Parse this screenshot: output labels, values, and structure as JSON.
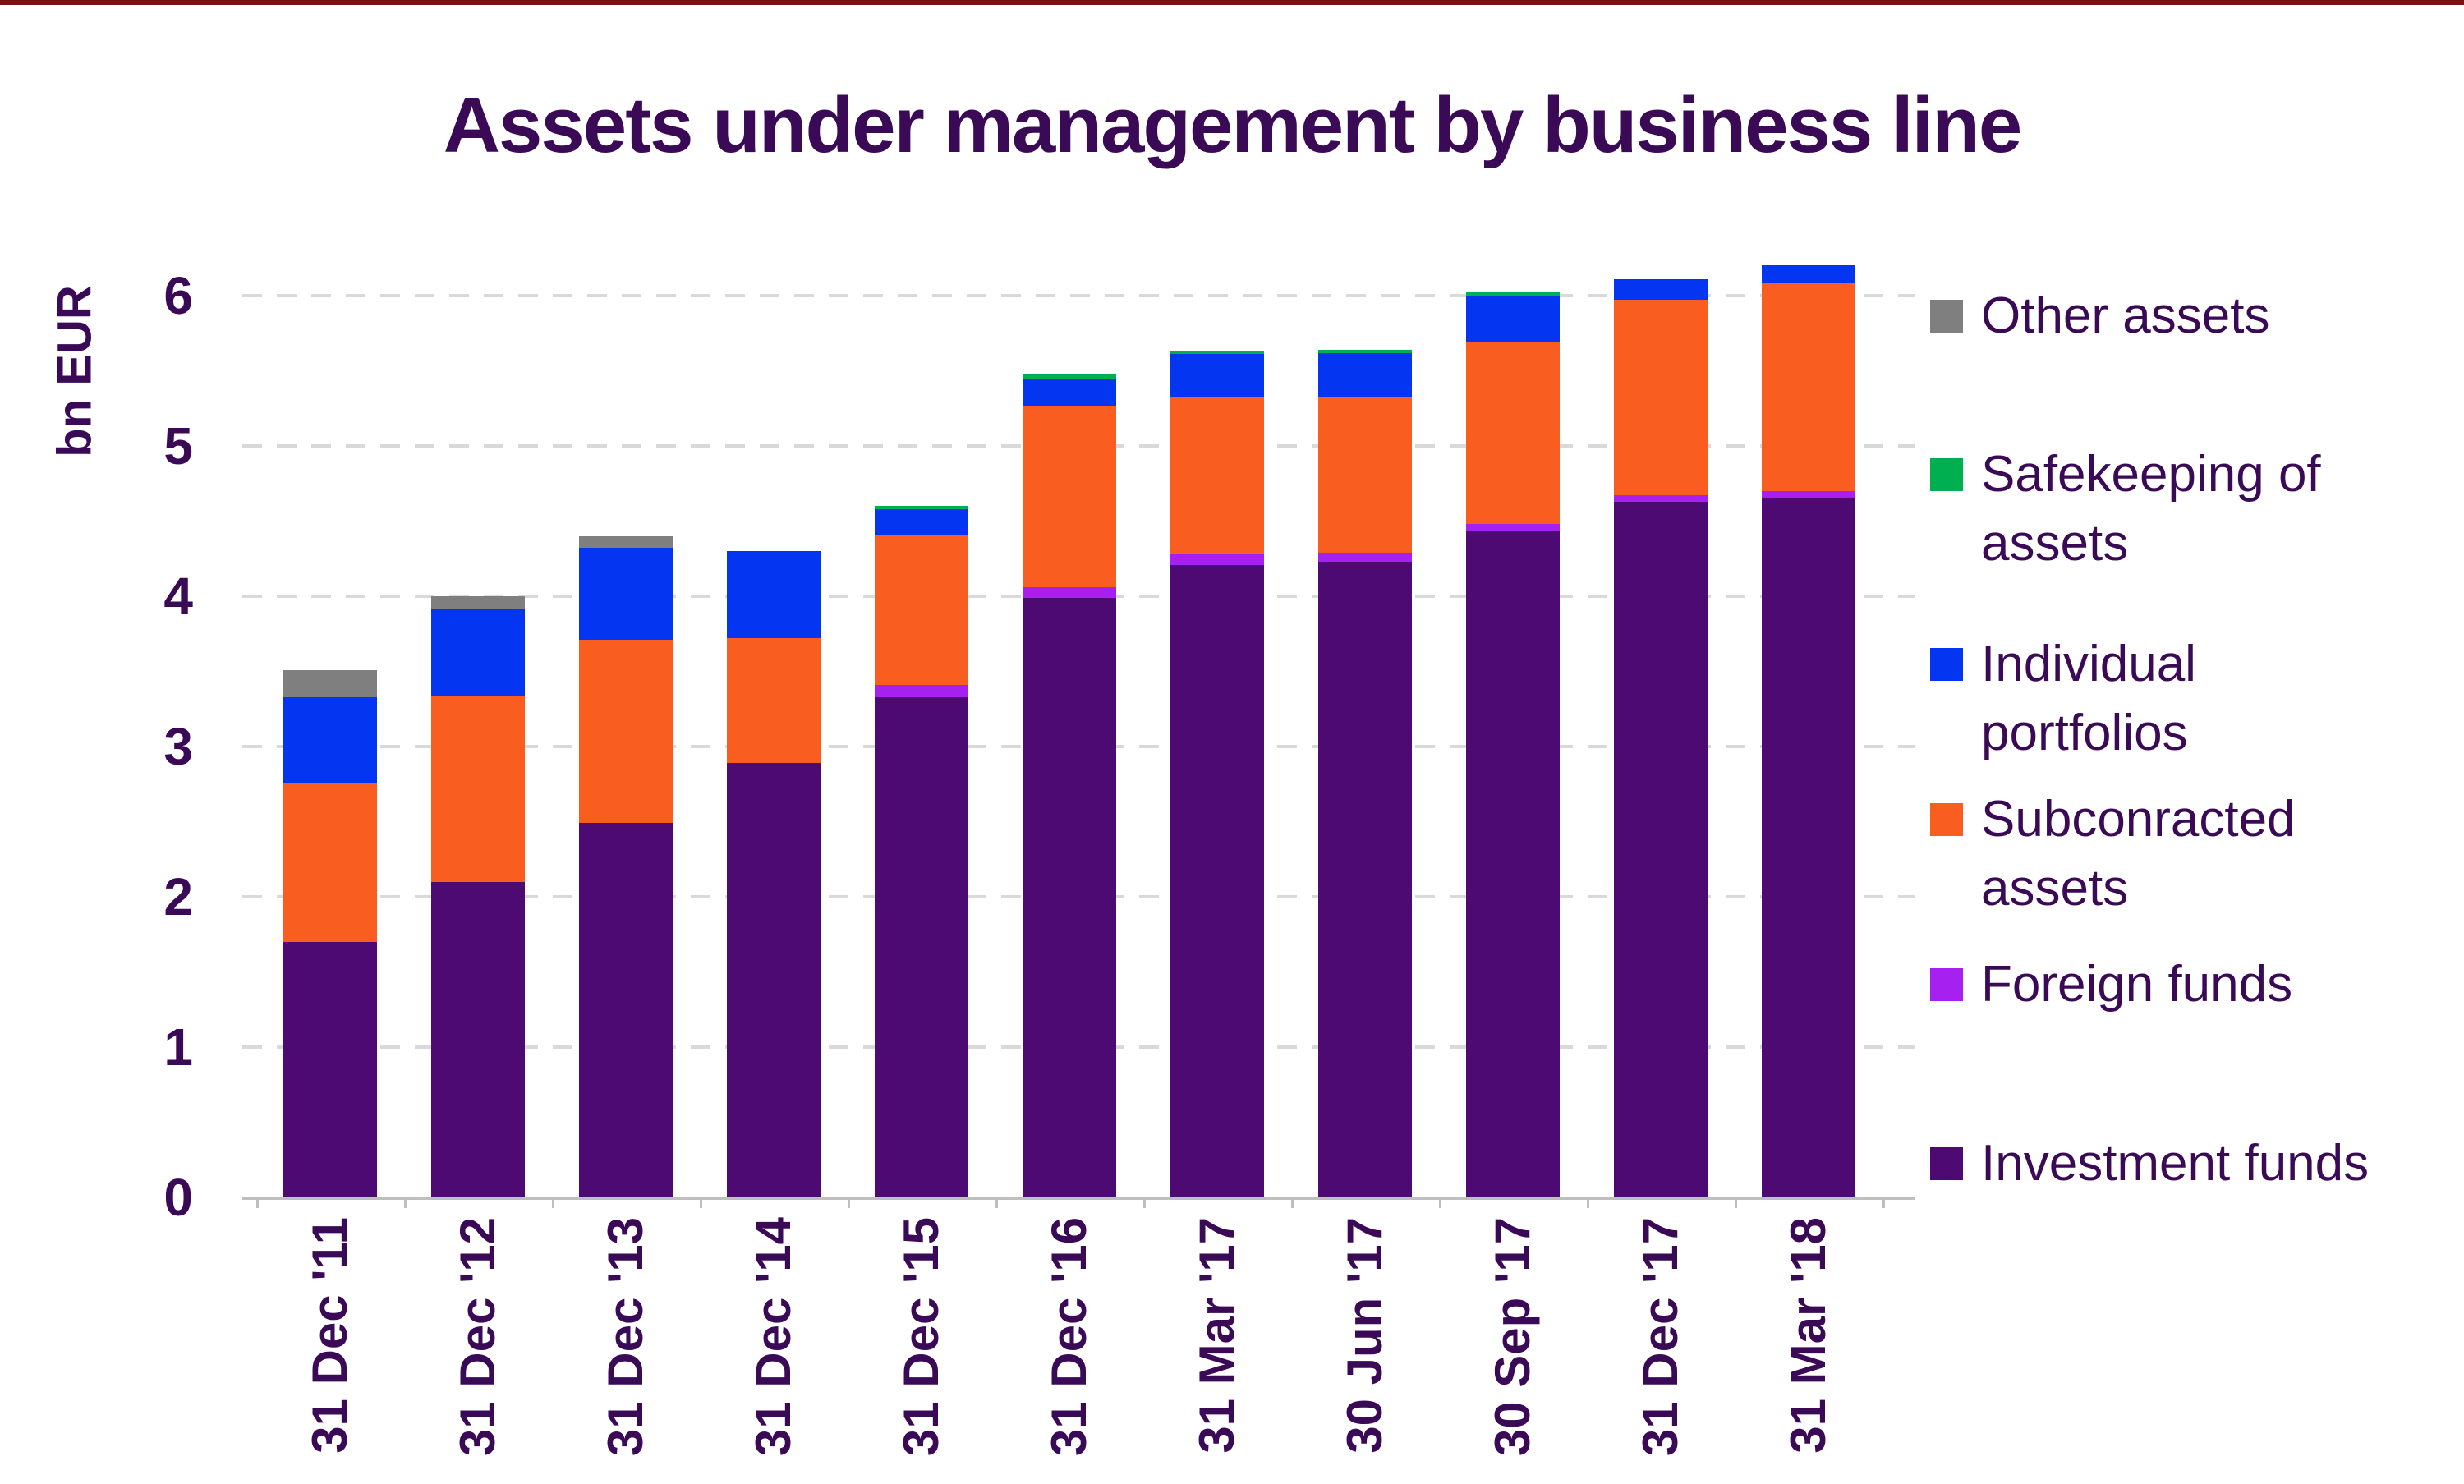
{
  "accent_bar": {
    "color": "#7A1012"
  },
  "title": "Assets under management by business line",
  "text_color": "#3A0A57",
  "axis_colors": {
    "gridline": "#D9D9D9",
    "axis_line": "#BFBFBF"
  },
  "y_axis": {
    "label": "bn EUR",
    "ticks": [
      0,
      1,
      2,
      3,
      4,
      5,
      6
    ],
    "max": 6
  },
  "legend": {
    "position": "right",
    "items": [
      {
        "key": "other",
        "lines": [
          "Other assets"
        ],
        "color": "#7F7F7F"
      },
      {
        "key": "safekeeping",
        "lines": [
          "Safekeeping of",
          "assets"
        ],
        "color": "#00B050"
      },
      {
        "key": "individual",
        "lines": [
          "Individual",
          "portfolios"
        ],
        "color": "#0435F0"
      },
      {
        "key": "subcontracted",
        "lines": [
          "Subconracted",
          "assets"
        ],
        "color": "#F95D1F"
      },
      {
        "key": "foreign",
        "lines": [
          "Foreign funds"
        ],
        "color": "#A620F0"
      },
      {
        "key": "investment",
        "lines": [
          "Investment funds"
        ],
        "color": "#4D0A73"
      }
    ]
  },
  "chart_data": {
    "type": "bar",
    "stacked": true,
    "title": "Assets under management by business line",
    "ylabel": "bn EUR",
    "ylim": [
      0,
      6
    ],
    "grid": "horizontal-dashed",
    "legend_position": "right",
    "categories": [
      "31 Dec '11",
      "31 Dec '12",
      "31 Dec '13",
      "31 Dec '14",
      "31 Dec '15",
      "31 Dec '16",
      "31 Mar '17",
      "30 Jun '17",
      "30 Sep '17",
      "31 Dec '17",
      "31 Mar '18"
    ],
    "series": [
      {
        "name": "Investment funds",
        "color": "#4D0A73",
        "values": [
          1.7,
          2.1,
          2.49,
          2.89,
          3.33,
          3.99,
          4.21,
          4.23,
          4.43,
          4.63,
          4.65
        ]
      },
      {
        "name": "Foreign funds",
        "color": "#A620F0",
        "values": [
          0,
          0,
          0,
          0,
          0.08,
          0.07,
          0.07,
          0.06,
          0.05,
          0.04,
          0.05
        ]
      },
      {
        "name": "Subconracted assets",
        "color": "#F95D1F",
        "values": [
          1.06,
          1.24,
          1.22,
          0.83,
          1.0,
          1.21,
          1.05,
          1.03,
          1.21,
          1.3,
          1.39
        ]
      },
      {
        "name": "Individual portfolios",
        "color": "#0435F0",
        "values": [
          0.57,
          0.58,
          0.61,
          0.58,
          0.17,
          0.18,
          0.28,
          0.3,
          0.31,
          0.14,
          0.11
        ]
      },
      {
        "name": "Safekeeping of assets",
        "color": "#00B050",
        "values": [
          0,
          0,
          0,
          0,
          0.02,
          0.03,
          0.02,
          0.02,
          0.02,
          0,
          0
        ]
      },
      {
        "name": "Other assets",
        "color": "#7F7F7F",
        "values": [
          0.18,
          0.08,
          0.08,
          0,
          0,
          0,
          0,
          0,
          0,
          0,
          0
        ]
      }
    ],
    "totals": [
      3.51,
      4.0,
      4.4,
      4.3,
      4.6,
      5.48,
      5.63,
      5.64,
      6.02,
      6.11,
      6.2
    ]
  }
}
